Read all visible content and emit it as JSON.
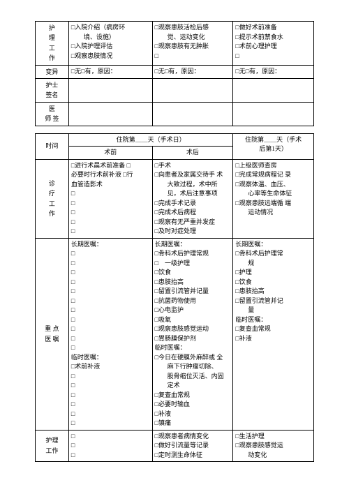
{
  "t1": {
    "rows": [
      {
        "label": "护\n理\n工\n作",
        "c1": [
          "□入院介绍（病房环",
          "　　境、设施）",
          "□入院护理评估",
          "□观察患肢情况"
        ],
        "c2": [
          "□观察患肢活检后感",
          "　　觉、运动变化",
          "□观察患肢有无肿胀",
          "□"
        ],
        "c3": [
          "□做好术前准备",
          "□提示术前禁食水",
          "□术前心理护理",
          "□"
        ]
      },
      {
        "label": "变异",
        "c1": [
          "□无□有，原因："
        ],
        "c2": [
          "□无□有，原因："
        ],
        "c3": [
          "□无□有，原因："
        ]
      },
      {
        "label": "护士\n签名",
        "c1": [
          ""
        ],
        "c2": [
          ""
        ],
        "c3": [
          ""
        ]
      },
      {
        "label": "医\n师 签",
        "c1": [
          ""
        ],
        "c2": [
          ""
        ],
        "c3": [
          ""
        ]
      }
    ]
  },
  "t2": {
    "head": {
      "time": "时间",
      "mid": "住院第＿＿天（手术日）",
      "mid_l": "术前",
      "mid_r": "术后",
      "right": "住院第＿＿天（手术",
      "right2": "后第1天）"
    },
    "sec1": {
      "label": "诊\n疗\n工\n作",
      "c1": [
        "□进行术晨术前准备 □",
        "必要时行术前补液 □行",
        "血管造影术",
        "□",
        "□",
        "□",
        "□",
        "□"
      ],
      "c2": [
        "□手术",
        "□向患者及家属交待手 术",
        "　　大致过程，术中所",
        "　　见，术后注意事项",
        "□完成手术记录",
        "□完成术后病程",
        "□观察有无严重并发症",
        "□及时对症处理"
      ],
      "c3": [
        "□上级医师查房",
        "□完成常规病程记 录",
        "□观察体温、血压、",
        "　　心率等生命体征",
        "□观察患肢远端循 端",
        "　　运动情况"
      ]
    },
    "sec2": {
      "label": "重 点\n医 嘱",
      "c1": [
        "长期医嘱：",
        "□",
        "□",
        "□",
        "□",
        "□",
        "□",
        "□",
        "□",
        "□",
        "□",
        "□",
        "临时医嘱：",
        "□术前补液",
        "□",
        "□",
        "□",
        "□",
        "□",
        "□"
      ],
      "c2": [
        "长期医嘱：",
        "□骨科术后护理常规",
        "□　一级护理",
        "□饮食",
        "□患肢抬高",
        "□留置引流管并记量",
        "□抗菌药物使用",
        "□心电监护",
        "□吸氧",
        "□观察患肢感觉运动",
        "□胃肠膜保护剂",
        "临时医嘱：",
        "□今日在硬膜外麻醉或 全",
        "　　麻下行肿瘤切除、",
        "　　股骨缩位灭活、内固",
        "　　定术",
        "□复查血常规",
        "□必要时输血",
        "□补液",
        "□镇痛"
      ],
      "c3": [
        "长期医嘱：",
        "□骨科术后护理常",
        "　　规",
        "□护理",
        "□饮食",
        "□患肢抬高",
        "□留置引流管并记",
        "　　量",
        "",
        "",
        "",
        "",
        "临时医嘱：",
        "□复查血常规",
        "□补液",
        "",
        "",
        "",
        "",
        ""
      ]
    },
    "sec3": {
      "label": "护理\n工作",
      "c1": [
        "□",
        "□",
        "□"
      ],
      "c2": [
        "□观察患者病情变化",
        "□做好引流量等记录",
        "□定时测生命体征"
      ],
      "c3": [
        "□生活护理",
        "□观察患肢感觉运",
        "　　动变化"
      ]
    }
  }
}
